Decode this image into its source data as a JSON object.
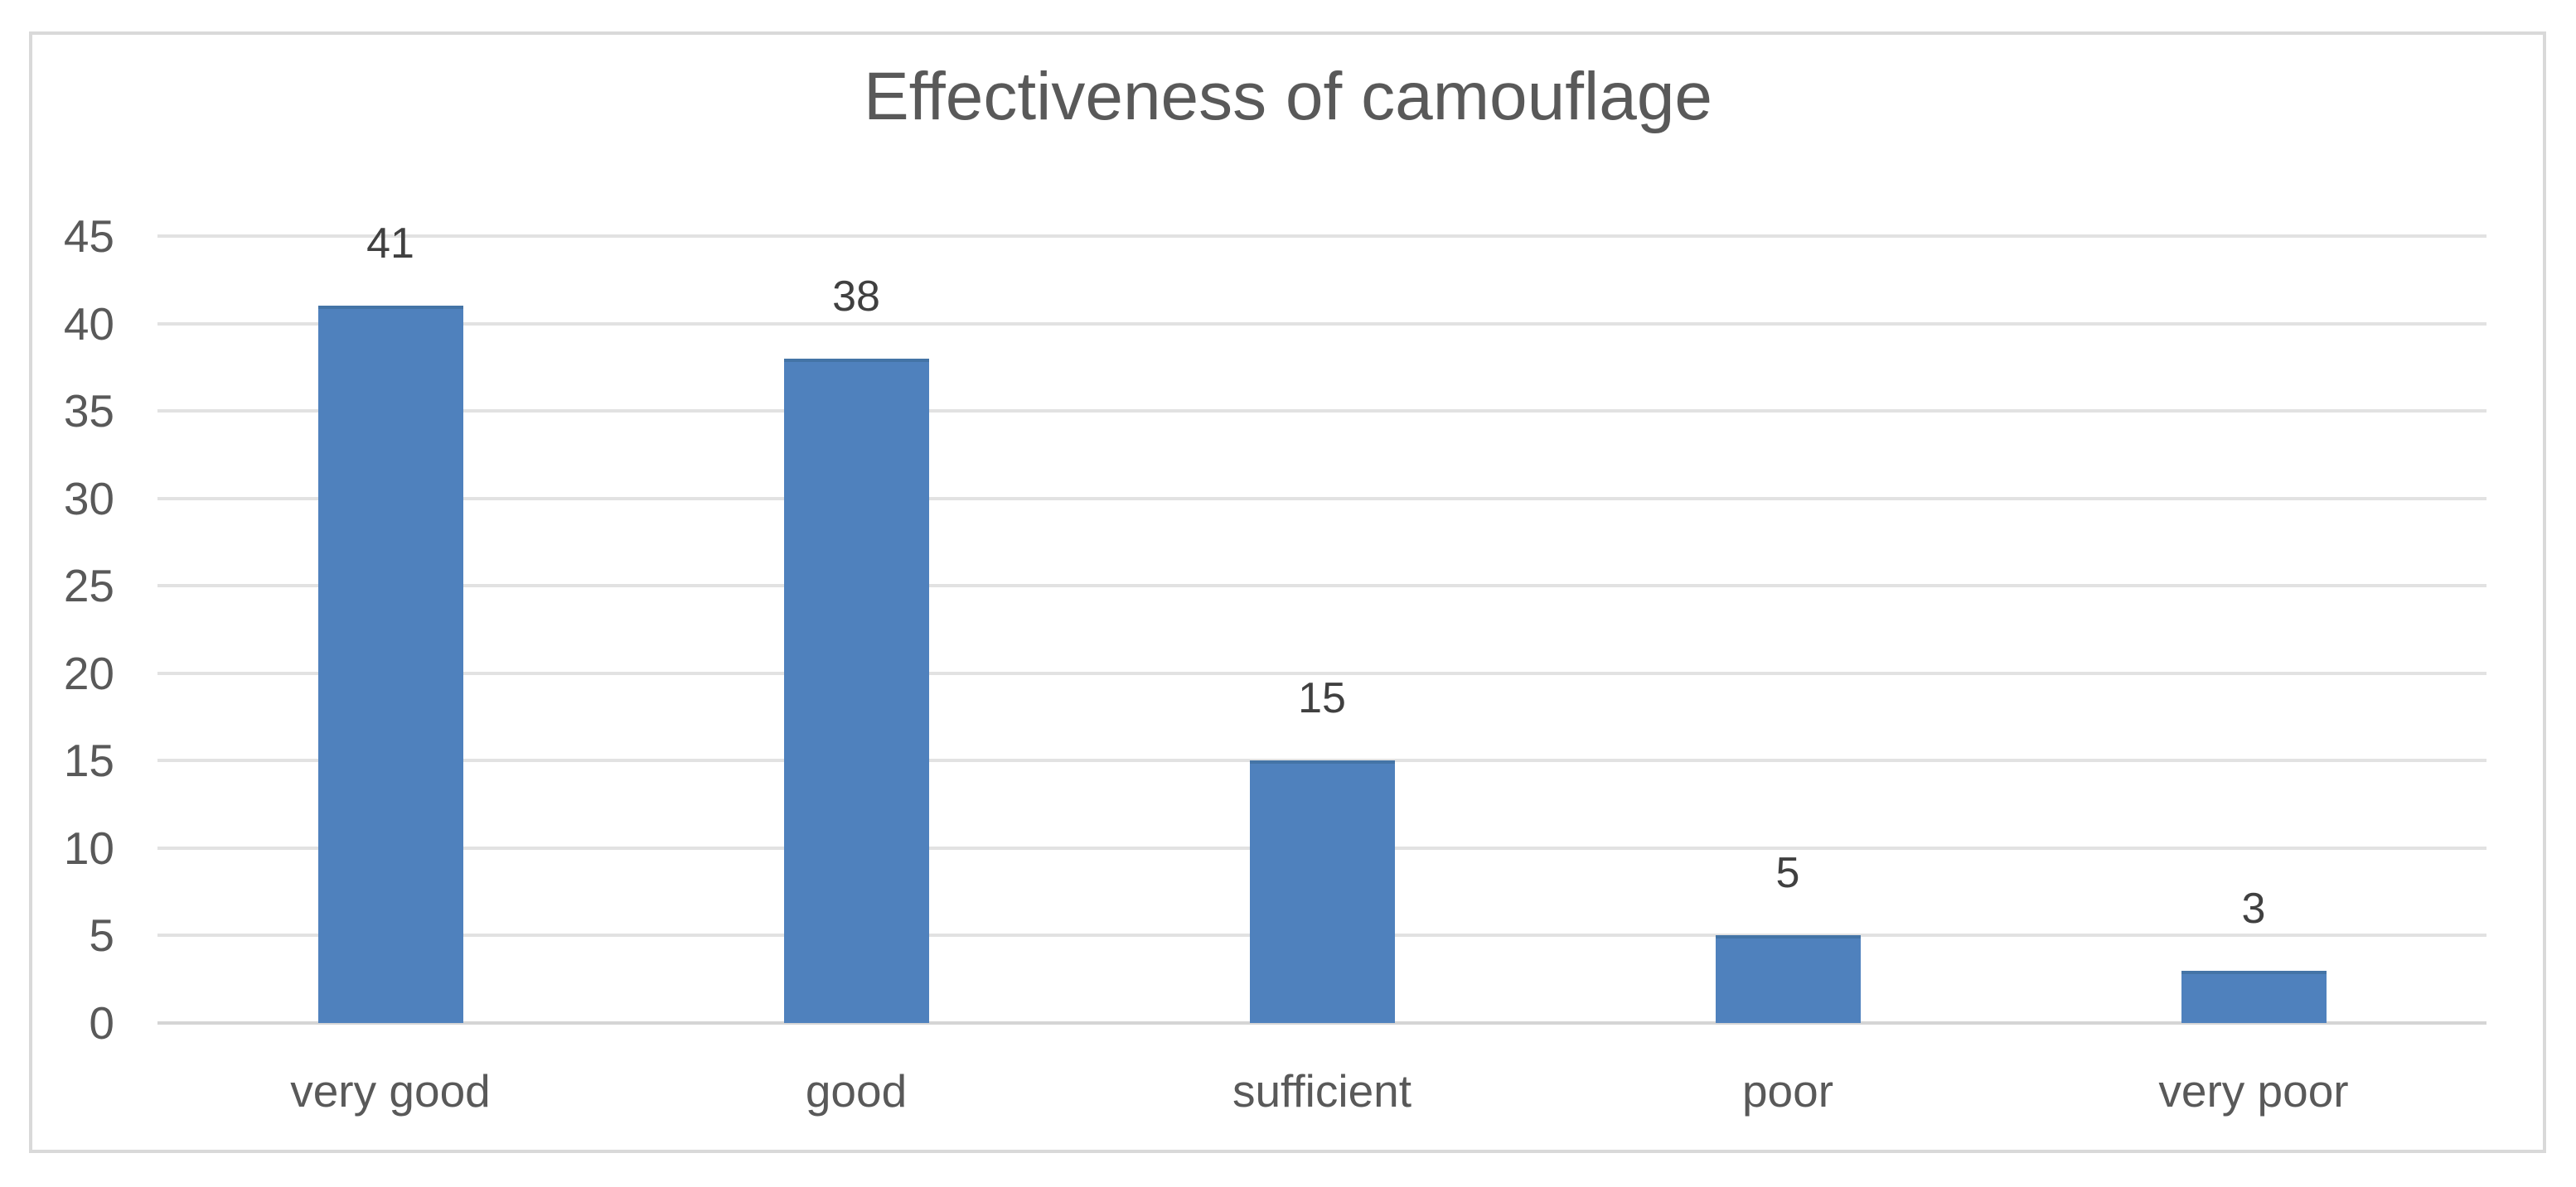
{
  "chart_data": {
    "type": "bar",
    "title": "Effectiveness of camouflage",
    "categories": [
      "very good",
      "good",
      "sufficient",
      "poor",
      "very poor"
    ],
    "values": [
      41,
      38,
      15,
      5,
      3
    ],
    "data_labels": [
      "41",
      "38",
      "15",
      "5",
      "3"
    ],
    "y_ticks": [
      0,
      5,
      10,
      15,
      20,
      25,
      30,
      35,
      40,
      45
    ],
    "ylim": [
      0,
      45
    ],
    "xlabel": "",
    "ylabel": "",
    "grid": true,
    "legend": "none",
    "colors": {
      "bar_fill": "#4F81BD",
      "bar_top_edge": "#4474A6",
      "gridline": "#E2E2E2",
      "axis_line": "#D5D5D5",
      "frame_border": "#D9D9D9",
      "title_text": "#595959",
      "tick_label_text": "#595959",
      "data_label_text": "#404040",
      "background": "#FFFFFF"
    }
  }
}
